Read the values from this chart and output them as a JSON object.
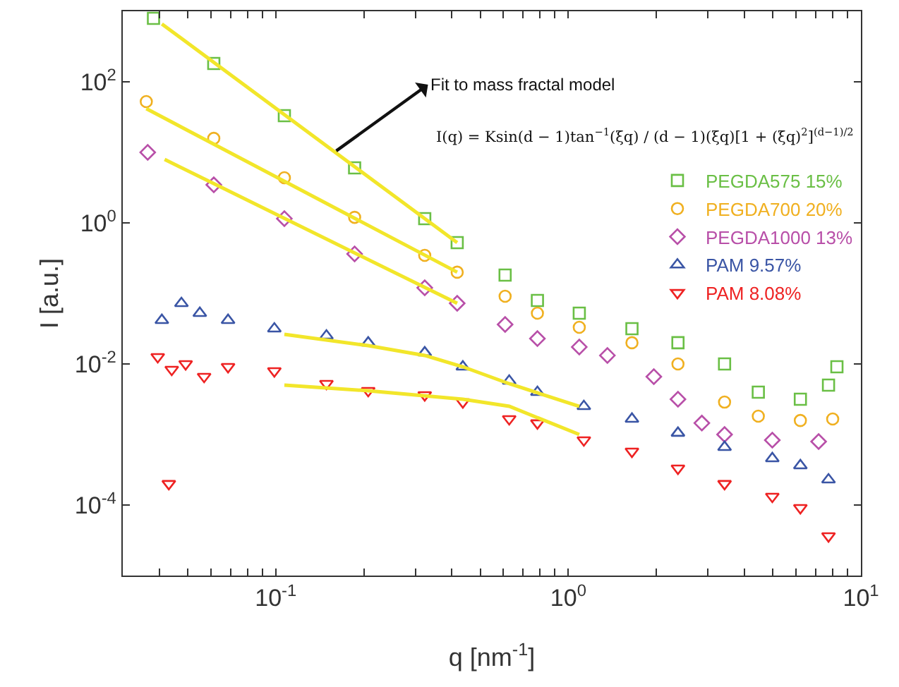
{
  "chart_data": {
    "type": "scatter",
    "xlabel": "q [nm$^{-1}$]",
    "ylabel": "I [a.u.]",
    "log": "xy",
    "grid": false,
    "legend": "right",
    "xlim": [
      0.03,
      10
    ],
    "ylim": [
      1e-05,
      1000
    ],
    "xticks": [
      {
        "value": 0.04,
        "label": null
      },
      {
        "value": 0.05,
        "label": null
      },
      {
        "value": 0.06,
        "label": null
      },
      {
        "value": 0.07,
        "label": null
      },
      {
        "value": 0.08,
        "label": null
      },
      {
        "value": 0.09,
        "label": null
      },
      {
        "value": 0.1,
        "label": "10$^{-1}$"
      },
      {
        "value": 0.2,
        "label": null
      },
      {
        "value": 0.3,
        "label": null
      },
      {
        "value": 0.4,
        "label": null
      },
      {
        "value": 0.5,
        "label": null
      },
      {
        "value": 0.6,
        "label": null
      },
      {
        "value": 0.7,
        "label": null
      },
      {
        "value": 0.8,
        "label": null
      },
      {
        "value": 0.9,
        "label": null
      },
      {
        "value": 1,
        "label": "10$^{0}$"
      },
      {
        "value": 2,
        "label": null
      },
      {
        "value": 3,
        "label": null
      },
      {
        "value": 4,
        "label": null
      },
      {
        "value": 5,
        "label": null
      },
      {
        "value": 6,
        "label": null
      },
      {
        "value": 7,
        "label": null
      },
      {
        "value": 8,
        "label": null
      },
      {
        "value": 9,
        "label": null
      },
      {
        "value": 10,
        "label": "10$^{1}$"
      }
    ],
    "yticks": [
      {
        "value": 0.0001,
        "label": "10$^{-4}$"
      },
      {
        "value": 0.01,
        "label": "10$^{-2}$"
      },
      {
        "value": 1,
        "label": "10$^{0}$"
      },
      {
        "value": 100,
        "label": "10$^{2}$"
      }
    ],
    "annotations": [
      {
        "text": "Fit to mass fractal model",
        "x": 0.161,
        "y": 10.5
      },
      "I(q) = Ksin(d − 1)tan$^{−1}$(ξq) / (d − 1)(ξq)[1 + (ξq)$^{2}$]$^{(d−1)/2}$"
    ],
    "series": [
      {
        "name": "PEGDA575 15%",
        "color": "#6abf45",
        "marker": "square",
        "x": [
          0.0382,
          0.0614,
          0.107,
          0.186,
          0.323,
          0.417,
          0.608,
          0.784,
          1.09,
          1.65,
          2.37,
          3.42,
          4.46,
          6.21,
          7.75,
          8.28
        ],
        "values": [
          794,
          182,
          33.1,
          6.03,
          1.15,
          0.525,
          0.182,
          0.0794,
          0.0525,
          0.0316,
          0.02,
          0.01,
          0.00398,
          0.00316,
          0.00501,
          0.00912
        ]
      },
      {
        "name": "PEGDA700 20%",
        "color": "#f0b020",
        "marker": "circle",
        "x": [
          0.0361,
          0.0614,
          0.107,
          0.186,
          0.323,
          0.417,
          0.608,
          0.784,
          1.09,
          1.65,
          2.37,
          3.42,
          4.46,
          6.21,
          8.01
        ],
        "values": [
          52.5,
          15.8,
          4.37,
          1.2,
          0.347,
          0.2,
          0.0912,
          0.0525,
          0.0331,
          0.02,
          0.01,
          0.00288,
          0.00182,
          0.00158,
          0.00166
        ]
      },
      {
        "name": "PEGDA1000 13%",
        "color": "#b84fa8",
        "marker": "diamond",
        "x": [
          0.0365,
          0.0614,
          0.107,
          0.186,
          0.323,
          0.417,
          0.608,
          0.784,
          1.09,
          1.36,
          1.96,
          2.37,
          2.86,
          3.42,
          4.98,
          7.17
        ],
        "values": [
          10,
          3.47,
          1.15,
          0.363,
          0.12,
          0.0724,
          0.0363,
          0.0229,
          0.0174,
          0.0132,
          0.00661,
          0.00316,
          0.00145,
          0.001,
          0.000832,
          0.000794
        ]
      },
      {
        "name": "PAM 9.57%",
        "color": "#3a55a5",
        "marker": "triangle",
        "x": [
          0.0408,
          0.0476,
          0.055,
          0.0687,
          0.0989,
          0.149,
          0.207,
          0.323,
          0.436,
          0.628,
          0.784,
          1.13,
          1.65,
          2.37,
          3.42,
          4.98,
          6.21,
          7.75
        ],
        "values": [
          0.0417,
          0.0724,
          0.0525,
          0.0417,
          0.0316,
          0.0251,
          0.02,
          0.0145,
          0.00912,
          0.00575,
          0.00398,
          0.00251,
          0.00166,
          0.00105,
          0.000661,
          0.000457,
          0.000363,
          0.000229
        ]
      },
      {
        "name": "PAM 8.08%",
        "color": "#ee2222",
        "marker": "triangle-down",
        "x": [
          0.0395,
          0.0431,
          0.0441,
          0.0492,
          0.0569,
          0.0687,
          0.0989,
          0.149,
          0.207,
          0.323,
          0.436,
          0.628,
          0.784,
          1.13,
          1.65,
          2.37,
          3.42,
          4.98,
          6.21,
          7.75
        ],
        "values": [
          0.0126,
          0.0002,
          0.00832,
          0.01,
          0.00661,
          0.00912,
          0.00794,
          0.00525,
          0.00417,
          0.00363,
          0.00288,
          0.00166,
          0.00145,
          0.000832,
          0.000575,
          0.000331,
          0.0002,
          0.000132,
          9.12e-05,
          3.63e-05
        ]
      },
      {
        "type": "line",
        "color": "#f2e62a",
        "x": [
          0.0408,
          0.417
        ],
        "values": [
          661,
          0.525
        ]
      },
      {
        "type": "line",
        "color": "#f2e62a",
        "x": [
          0.0361,
          0.417
        ],
        "values": [
          41.7,
          0.2
        ]
      },
      {
        "type": "line",
        "color": "#f2e62a",
        "x": [
          0.0417,
          0.417
        ],
        "values": [
          7.94,
          0.0724
        ]
      },
      {
        "type": "line",
        "color": "#f2e62a",
        "x": [
          0.107,
          0.207,
          0.323,
          0.436,
          0.628,
          1.09
        ],
        "values": [
          0.0263,
          0.0182,
          0.0132,
          0.00912,
          0.00525,
          0.00251
        ]
      },
      {
        "type": "line",
        "color": "#f2e62a",
        "x": [
          0.107,
          0.207,
          0.436,
          0.628,
          1.09
        ],
        "values": [
          0.00501,
          0.00417,
          0.00316,
          0.00251,
          0.001
        ]
      }
    ]
  }
}
